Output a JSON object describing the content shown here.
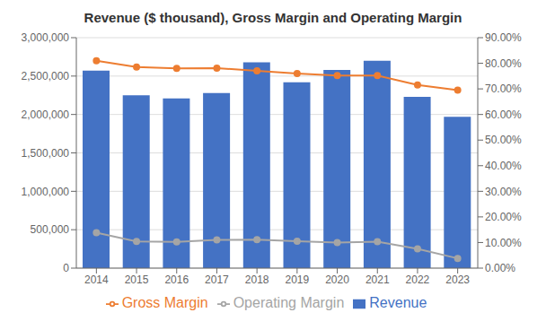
{
  "chart_data": {
    "type": "bar",
    "title": "Revenue ($ thousand), Gross Margin and Operating Margin",
    "categories": [
      "2014",
      "2015",
      "2016",
      "2017",
      "2018",
      "2019",
      "2020",
      "2021",
      "2022",
      "2023"
    ],
    "series": [
      {
        "name": "Revenue",
        "type": "bar",
        "color": "#4472C4",
        "values": [
          2570000,
          2250000,
          2208000,
          2280000,
          2680000,
          2420000,
          2580000,
          2700000,
          2230000,
          1970000
        ]
      },
      {
        "name": "Gross Margin",
        "type": "line",
        "color": "#ED7D31",
        "marker": "circle",
        "axis": "y2",
        "values": [
          0.81,
          0.785,
          0.78,
          0.781,
          0.77,
          0.76,
          0.752,
          0.752,
          0.715,
          0.695
        ]
      },
      {
        "name": "Operating Margin",
        "type": "line",
        "color": "#A5A5A5",
        "marker": "circle",
        "axis": "y2",
        "values": [
          0.138,
          0.104,
          0.102,
          0.11,
          0.111,
          0.105,
          0.1,
          0.103,
          0.075,
          0.038
        ]
      }
    ],
    "ylim": [
      0,
      3000000
    ],
    "yticks": [
      0,
      {
        "value": 500000,
        "label": "500,000"
      },
      {
        "value": 1000000,
        "label": "1,000,000"
      },
      {
        "value": 1500000,
        "label": "1,500,000"
      },
      {
        "value": 2000000,
        "label": "2,000,000"
      },
      {
        "value": 2500000,
        "label": "2,500,000"
      },
      {
        "value": 3000000,
        "label": "3,000,000"
      }
    ],
    "y2lim": [
      0.0,
      0.9
    ],
    "y2ticks": [
      {
        "value": 0,
        "label": "0.00%"
      },
      {
        "value": 0.1,
        "label": "10.00%"
      },
      {
        "value": 0.2,
        "label": "20.00%"
      },
      {
        "value": 0.3,
        "label": "30.00%"
      },
      {
        "value": 0.4,
        "label": "40.00%"
      },
      {
        "value": 0.5,
        "label": "50.00%"
      },
      {
        "value": 0.6,
        "label": "60.00%"
      },
      {
        "value": 0.7,
        "label": "70.00%"
      },
      {
        "value": 0.8,
        "label": "80.00%"
      },
      {
        "value": 0.9,
        "label": "90.00%"
      }
    ],
    "grid": true,
    "legend": "bottom"
  }
}
